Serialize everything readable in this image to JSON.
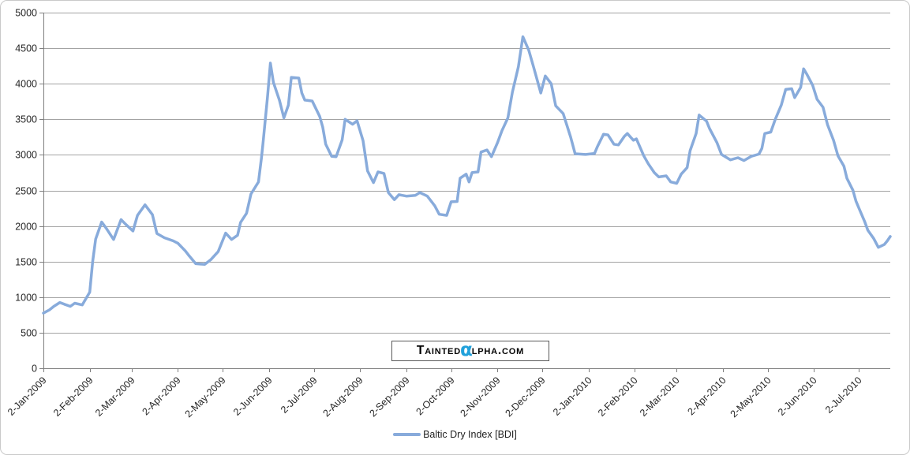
{
  "colors": {
    "background": "#FFFFFF",
    "frame_border": "#C9C9C9",
    "gridline": "#A3A3A3",
    "axis": "#7F7F7F",
    "tick_label": "#262626",
    "series_line": "#88ABDB",
    "watermark_alpha": "#21A1DB"
  },
  "watermark": {
    "prefix": "Tainted",
    "alpha": "α",
    "suffix": "lpha.com"
  },
  "chart_data": {
    "type": "line",
    "title": "",
    "xlabel": "",
    "ylabel": "",
    "ylim": [
      0,
      5000
    ],
    "ytick_step": 500,
    "grid": "horizontal-major",
    "legend_position": "bottom-center",
    "y_tick_labels": [
      "0",
      "500",
      "1000",
      "1500",
      "2000",
      "2500",
      "3000",
      "3500",
      "4000",
      "4500",
      "5000"
    ],
    "x_tick_labels": [
      "2-Jan-2009",
      "2-Feb-2009",
      "2-Mar-2009",
      "2-Apr-2009",
      "2-May-2009",
      "2-Jun-2009",
      "2-Jul-2009",
      "2-Aug-2009",
      "2-Sep-2009",
      "2-Oct-2009",
      "2-Nov-2009",
      "2-Dec-2009",
      "2-Jan-2010",
      "2-Feb-2010",
      "2-Mar-2010",
      "2-Apr-2010",
      "2-May-2010",
      "2-Jun-2010",
      "2-Jul-2010"
    ],
    "series": [
      {
        "name": "Baltic Dry Index [BDI]",
        "color": "#88ABDB",
        "points": [
          [
            "2-Jan-2009",
            775
          ],
          [
            "6-Jan-2009",
            820
          ],
          [
            "9-Jan-2009",
            870
          ],
          [
            "13-Jan-2009",
            925
          ],
          [
            "16-Jan-2009",
            900
          ],
          [
            "20-Jan-2009",
            870
          ],
          [
            "23-Jan-2009",
            915
          ],
          [
            "28-Jan-2009",
            890
          ],
          [
            "2-Feb-2009",
            1070
          ],
          [
            "4-Feb-2009",
            1498
          ],
          [
            "6-Feb-2009",
            1816
          ],
          [
            "10-Feb-2009",
            2055
          ],
          [
            "13-Feb-2009",
            1970
          ],
          [
            "18-Feb-2009",
            1810
          ],
          [
            "23-Feb-2009",
            2090
          ],
          [
            "26-Feb-2009",
            2025
          ],
          [
            "3-Mar-2009",
            1930
          ],
          [
            "6-Mar-2009",
            2150
          ],
          [
            "11-Mar-2009",
            2298
          ],
          [
            "16-Mar-2009",
            2160
          ],
          [
            "19-Mar-2009",
            1895
          ],
          [
            "24-Mar-2009",
            1835
          ],
          [
            "30-Mar-2009",
            1790
          ],
          [
            "2-Apr-2009",
            1758
          ],
          [
            "7-Apr-2009",
            1650
          ],
          [
            "9-Apr-2009",
            1595
          ],
          [
            "14-Apr-2009",
            1470
          ],
          [
            "20-Apr-2009",
            1460
          ],
          [
            "24-Apr-2009",
            1525
          ],
          [
            "29-Apr-2009",
            1640
          ],
          [
            "4-May-2009",
            1900
          ],
          [
            "8-May-2009",
            1810
          ],
          [
            "12-May-2009",
            1870
          ],
          [
            "14-May-2009",
            2050
          ],
          [
            "18-May-2009",
            2180
          ],
          [
            "21-May-2009",
            2450
          ],
          [
            "26-May-2009",
            2620
          ],
          [
            "28-May-2009",
            2960
          ],
          [
            "29-May-2009",
            3160
          ],
          [
            "1-Jun-2009",
            3810
          ],
          [
            "3-Jun-2009",
            4291
          ],
          [
            "5-Jun-2009",
            4020
          ],
          [
            "9-Jun-2009",
            3770
          ],
          [
            "12-Jun-2009",
            3520
          ],
          [
            "15-Jun-2009",
            3700
          ],
          [
            "17-Jun-2009",
            4090
          ],
          [
            "22-Jun-2009",
            4080
          ],
          [
            "24-Jun-2009",
            3870
          ],
          [
            "26-Jun-2009",
            3770
          ],
          [
            "1-Jul-2009",
            3757
          ],
          [
            "6-Jul-2009",
            3540
          ],
          [
            "8-Jul-2009",
            3390
          ],
          [
            "10-Jul-2009",
            3150
          ],
          [
            "14-Jul-2009",
            2980
          ],
          [
            "17-Jul-2009",
            2975
          ],
          [
            "21-Jul-2009",
            3210
          ],
          [
            "23-Jul-2009",
            3500
          ],
          [
            "28-Jul-2009",
            3430
          ],
          [
            "31-Jul-2009",
            3480
          ],
          [
            "4-Aug-2009",
            3200
          ],
          [
            "7-Aug-2009",
            2775
          ],
          [
            "11-Aug-2009",
            2610
          ],
          [
            "14-Aug-2009",
            2760
          ],
          [
            "18-Aug-2009",
            2740
          ],
          [
            "21-Aug-2009",
            2470
          ],
          [
            "25-Aug-2009",
            2370
          ],
          [
            "28-Aug-2009",
            2440
          ],
          [
            "2-Sep-2009",
            2420
          ],
          [
            "8-Sep-2009",
            2430
          ],
          [
            "11-Sep-2009",
            2470
          ],
          [
            "16-Sep-2009",
            2420
          ],
          [
            "21-Sep-2009",
            2285
          ],
          [
            "24-Sep-2009",
            2165
          ],
          [
            "29-Sep-2009",
            2150
          ],
          [
            "2-Oct-2009",
            2340
          ],
          [
            "6-Oct-2009",
            2345
          ],
          [
            "8-Oct-2009",
            2672
          ],
          [
            "12-Oct-2009",
            2730
          ],
          [
            "14-Oct-2009",
            2620
          ],
          [
            "16-Oct-2009",
            2750
          ],
          [
            "20-Oct-2009",
            2760
          ],
          [
            "22-Oct-2009",
            3040
          ],
          [
            "26-Oct-2009",
            3070
          ],
          [
            "29-Oct-2009",
            2975
          ],
          [
            "2-Nov-2009",
            3170
          ],
          [
            "5-Nov-2009",
            3340
          ],
          [
            "9-Nov-2009",
            3520
          ],
          [
            "12-Nov-2009",
            3880
          ],
          [
            "16-Nov-2009",
            4240
          ],
          [
            "19-Nov-2009",
            4661
          ],
          [
            "23-Nov-2009",
            4470
          ],
          [
            "26-Nov-2009",
            4250
          ],
          [
            "1-Dec-2009",
            3870
          ],
          [
            "4-Dec-2009",
            4110
          ],
          [
            "8-Dec-2009",
            4000
          ],
          [
            "11-Dec-2009",
            3690
          ],
          [
            "16-Dec-2009",
            3580
          ],
          [
            "21-Dec-2009",
            3250
          ],
          [
            "24-Dec-2009",
            3015
          ],
          [
            "31-Dec-2009",
            3005
          ],
          [
            "6-Jan-2010",
            3020
          ],
          [
            "8-Jan-2010",
            3120
          ],
          [
            "12-Jan-2010",
            3290
          ],
          [
            "15-Jan-2010",
            3280
          ],
          [
            "19-Jan-2010",
            3150
          ],
          [
            "22-Jan-2010",
            3140
          ],
          [
            "26-Jan-2010",
            3260
          ],
          [
            "28-Jan-2010",
            3300
          ],
          [
            "1-Feb-2010",
            3205
          ],
          [
            "3-Feb-2010",
            3225
          ],
          [
            "8-Feb-2010",
            2985
          ],
          [
            "11-Feb-2010",
            2875
          ],
          [
            "15-Feb-2010",
            2750
          ],
          [
            "18-Feb-2010",
            2690
          ],
          [
            "23-Feb-2010",
            2705
          ],
          [
            "26-Feb-2010",
            2620
          ],
          [
            "2-Mar-2010",
            2600
          ],
          [
            "5-Mar-2010",
            2730
          ],
          [
            "9-Mar-2010",
            2820
          ],
          [
            "11-Mar-2010",
            3060
          ],
          [
            "15-Mar-2010",
            3300
          ],
          [
            "17-Mar-2010",
            3560
          ],
          [
            "22-Mar-2010",
            3475
          ],
          [
            "24-Mar-2010",
            3370
          ],
          [
            "29-Mar-2010",
            3170
          ],
          [
            "1-Apr-2010",
            3005
          ],
          [
            "7-Apr-2010",
            2930
          ],
          [
            "12-Apr-2010",
            2960
          ],
          [
            "16-Apr-2010",
            2920
          ],
          [
            "21-Apr-2010",
            2980
          ],
          [
            "26-Apr-2010",
            3010
          ],
          [
            "28-Apr-2010",
            3090
          ],
          [
            "30-Apr-2010",
            3300
          ],
          [
            "4-May-2010",
            3320
          ],
          [
            "7-May-2010",
            3500
          ],
          [
            "11-May-2010",
            3700
          ],
          [
            "14-May-2010",
            3920
          ],
          [
            "18-May-2010",
            3930
          ],
          [
            "20-May-2010",
            3805
          ],
          [
            "24-May-2010",
            3950
          ],
          [
            "26-May-2010",
            4209
          ],
          [
            "28-May-2010",
            4140
          ],
          [
            "1-Jun-2010",
            3980
          ],
          [
            "4-Jun-2010",
            3780
          ],
          [
            "8-Jun-2010",
            3670
          ],
          [
            "11-Jun-2010",
            3425
          ],
          [
            "15-Jun-2010",
            3205
          ],
          [
            "18-Jun-2010",
            2985
          ],
          [
            "22-Jun-2010",
            2840
          ],
          [
            "24-Jun-2010",
            2670
          ],
          [
            "28-Jun-2010",
            2502
          ],
          [
            "30-Jun-2010",
            2351
          ],
          [
            "2-Jul-2010",
            2250
          ],
          [
            "6-Jul-2010",
            2055
          ],
          [
            "8-Jul-2010",
            1940
          ],
          [
            "12-Jul-2010",
            1820
          ],
          [
            "15-Jul-2010",
            1700
          ],
          [
            "19-Jul-2010",
            1740
          ],
          [
            "21-Jul-2010",
            1790
          ],
          [
            "23-Jul-2010",
            1852
          ]
        ]
      }
    ]
  }
}
